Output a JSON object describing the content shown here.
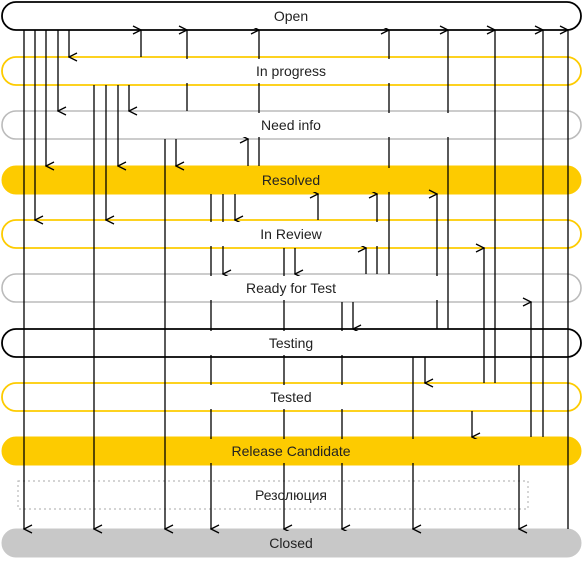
{
  "statuses": [
    {
      "id": "open",
      "label": "Open",
      "style": "outline-black"
    },
    {
      "id": "in-progress",
      "label": "In progress",
      "style": "outline-yellow"
    },
    {
      "id": "need-info",
      "label": "Need info",
      "style": "outline-gray"
    },
    {
      "id": "resolved",
      "label": "Resolved",
      "style": "filled-yellow"
    },
    {
      "id": "in-review",
      "label": "In Review",
      "style": "outline-yellow"
    },
    {
      "id": "ready-for-test",
      "label": "Ready for Test",
      "style": "outline-gray"
    },
    {
      "id": "testing",
      "label": "Testing",
      "style": "outline-black"
    },
    {
      "id": "tested",
      "label": "Tested",
      "style": "outline-yellow"
    },
    {
      "id": "release-candidate",
      "label": "Release Candidate",
      "style": "filled-yellow"
    },
    {
      "id": "resolution",
      "label": "Резолюция",
      "style": "dotted"
    },
    {
      "id": "closed",
      "label": "Closed",
      "style": "filled-gray"
    }
  ],
  "colors": {
    "yellow": "#FDCB00",
    "gray_fill": "#C8C8C8",
    "gray_outline": "#BBBBBB",
    "black": "#000000",
    "dotted": "#BBBBBB"
  }
}
